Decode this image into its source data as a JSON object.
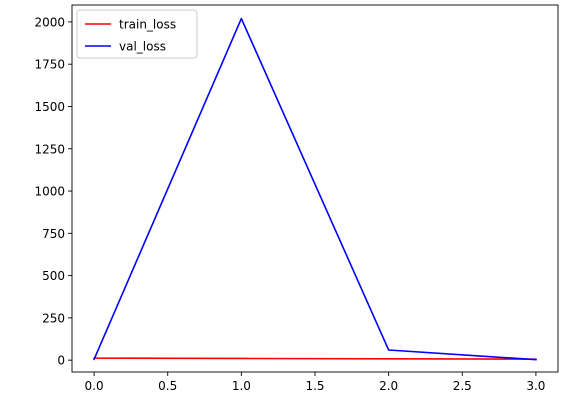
{
  "chart_data": {
    "type": "line",
    "title": "",
    "xlabel": "",
    "ylabel": "",
    "x": [
      0,
      1,
      2,
      3
    ],
    "xlim": [
      -0.15,
      3.15
    ],
    "ylim": [
      -70,
      2100
    ],
    "xticks": [
      0.0,
      0.5,
      1.0,
      1.5,
      2.0,
      2.5,
      3.0
    ],
    "xtick_labels": [
      "0.0",
      "0.5",
      "1.0",
      "1.5",
      "2.0",
      "2.5",
      "3.0"
    ],
    "yticks": [
      0,
      250,
      500,
      750,
      1000,
      1250,
      1500,
      1750,
      2000
    ],
    "ytick_labels": [
      "0",
      "250",
      "500",
      "750",
      "1000",
      "1250",
      "1500",
      "1750",
      "2000"
    ],
    "grid": false,
    "legend_position": "top-left",
    "series": [
      {
        "name": "train_loss",
        "color": "#ff0000",
        "values": [
          12,
          10,
          8,
          6
        ]
      },
      {
        "name": "val_loss",
        "color": "#0000ff",
        "values": [
          5,
          2020,
          60,
          3
        ]
      }
    ]
  }
}
